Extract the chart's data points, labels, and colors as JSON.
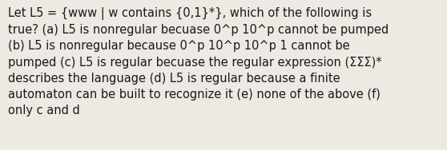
{
  "text": "Let L5 = {www | w contains {0,1}*}, which of the following is\ntrue? (a) L5 is nonregular becuase 0^p 10^p cannot be pumped\n(b) L5 is nonregular because 0^p 10^p 10^p 1 cannot be\npumped (c) L5 is regular becuase the regular expression (ΣΣΣ)*\ndescribes the language (d) L5 is regular because a finite\nautomaton can be built to recognize it (e) none of the above (f)\nonly c and d",
  "bg_color": "#ede9e3",
  "text_color": "#1a1a1a",
  "font_size": 10.5,
  "fig_width": 5.58,
  "fig_height": 1.88,
  "dpi": 100
}
